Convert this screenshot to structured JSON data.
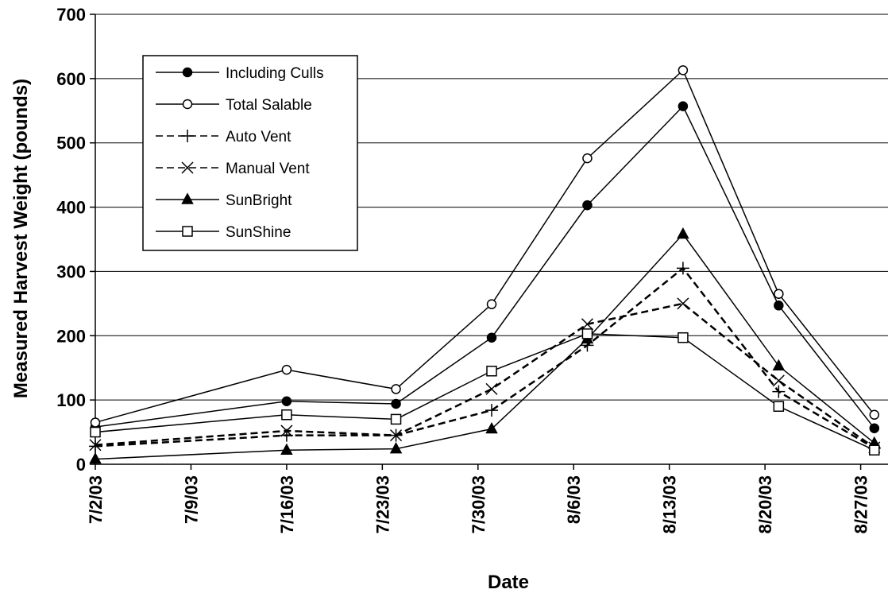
{
  "chart_data": {
    "type": "line",
    "x_label": "Date",
    "y_label": "Measured Harvest Weight (pounds)",
    "x": [
      "7/2/03",
      "7/16/03",
      "7/24/03",
      "7/31/03",
      "8/7/03",
      "8/14/03",
      "8/21/03",
      "8/28/03"
    ],
    "xlim": [
      "7/2/03",
      "8/29/03"
    ],
    "xticks": [
      "7/2/03",
      "7/9/03",
      "7/16/03",
      "7/23/03",
      "7/30/03",
      "8/6/03",
      "8/13/03",
      "8/20/03",
      "8/27/03"
    ],
    "ylim": [
      0,
      700
    ],
    "yticks": [
      0,
      100,
      200,
      300,
      400,
      500,
      600,
      700
    ],
    "grid": true,
    "series": [
      {
        "name": "Including Culls",
        "color": "#000000",
        "marker": "filled-circle",
        "dash": false,
        "values": [
          58,
          98,
          94,
          197,
          403,
          557,
          247,
          56
        ]
      },
      {
        "name": "Total Salable",
        "color": "#000000",
        "marker": "open-circle",
        "dash": false,
        "values": [
          65,
          147,
          117,
          249,
          476,
          613,
          265,
          77
        ]
      },
      {
        "name": "Auto Vent",
        "color": "#000000",
        "marker": "plus",
        "dash": true,
        "values": [
          28,
          45,
          45,
          84,
          185,
          305,
          113,
          25
        ]
      },
      {
        "name": "Manual Vent",
        "color": "#000000",
        "marker": "cross",
        "dash": true,
        "values": [
          30,
          52,
          45,
          117,
          218,
          250,
          130,
          26
        ]
      },
      {
        "name": "SunBright",
        "color": "#000000",
        "marker": "filled-triangle",
        "dash": false,
        "values": [
          8,
          22,
          24,
          55,
          195,
          358,
          153,
          33
        ]
      },
      {
        "name": "SunShine",
        "color": "#000000",
        "marker": "open-square",
        "dash": false,
        "values": [
          50,
          77,
          70,
          145,
          203,
          197,
          90,
          22
        ]
      }
    ]
  }
}
